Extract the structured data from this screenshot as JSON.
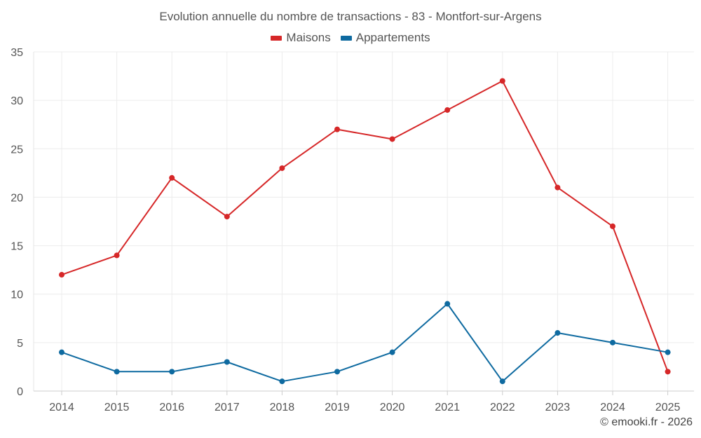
{
  "chart_data": {
    "type": "line",
    "title": "Evolution annuelle du nombre de transactions - 83 - Montfort-sur-Argens",
    "categories": [
      "2014",
      "2015",
      "2016",
      "2017",
      "2018",
      "2019",
      "2020",
      "2021",
      "2022",
      "2023",
      "2024",
      "2025"
    ],
    "series": [
      {
        "name": "Maisons",
        "color": "#d62728",
        "values": [
          12,
          14,
          22,
          18,
          23,
          27,
          26,
          29,
          32,
          21,
          17,
          2
        ]
      },
      {
        "name": "Appartements",
        "color": "#0e6aa0",
        "values": [
          4,
          2,
          2,
          3,
          1,
          2,
          4,
          9,
          1,
          6,
          5,
          4
        ]
      }
    ],
    "ylim": [
      0,
      35
    ],
    "yticks": [
      0,
      5,
      10,
      15,
      20,
      25,
      30,
      35
    ],
    "xlabel": "",
    "ylabel": "",
    "grid": true,
    "legend_position": "top-center"
  },
  "credit": "© emooki.fr - 2026"
}
